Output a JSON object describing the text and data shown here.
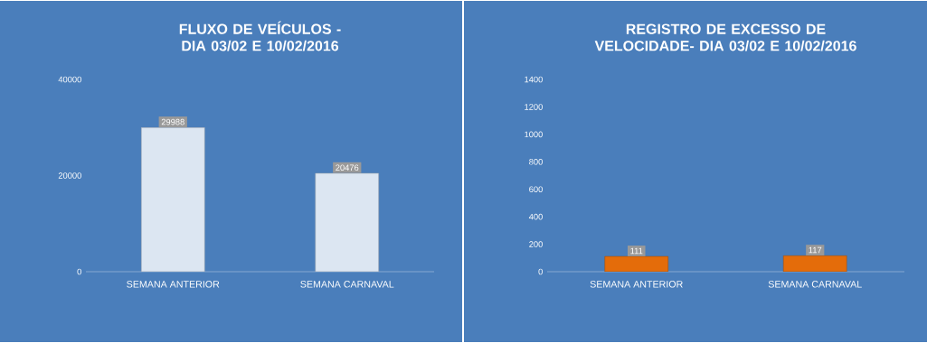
{
  "chart_data": [
    {
      "type": "bar",
      "title": "FLUXO DE VEÍCULOS - DIA 03/02 E 10/02/2016",
      "categories": [
        "SEMANA ANTERIOR",
        "SEMANA CARNAVAL"
      ],
      "series": [
        {
          "color": "#dce6f2",
          "values": [
            29988,
            20476
          ]
        }
      ],
      "ylim": [
        0,
        40000
      ],
      "yticks": [
        0,
        20000,
        40000
      ],
      "data_labels": true
    },
    {
      "type": "bar",
      "title": "REGISTRO DE EXCESSO DE VELOCIDADE- DIA 03/02 E 10/02/2016",
      "categories": [
        "SEMANA ANTERIOR",
        "SEMANA CARNAVAL"
      ],
      "series": [
        {
          "color": "#e46c0a",
          "values": [
            111,
            117
          ]
        }
      ],
      "ylim": [
        0,
        1400
      ],
      "yticks": [
        0,
        200,
        400,
        600,
        800,
        1000,
        1200,
        1400
      ],
      "data_labels": true
    }
  ]
}
